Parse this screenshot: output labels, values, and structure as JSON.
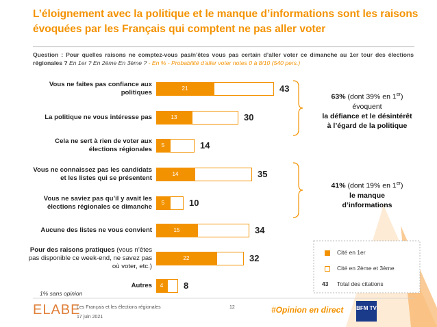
{
  "header": {
    "title_lines": [
      "L’éloignement avec la politique et le manque d’informations sont les raisons",
      "évoquées par les Français qui comptent ne pas aller voter"
    ],
    "question_label": "Question :",
    "question": "Pour quelles raisons ne comptez-vous pas/n’êtes vous pas certain d’aller voter ce dimanche au 1er tour des élections régionales ?",
    "question_options": "En 1er ? En 2ème En 3ème ?",
    "question_base": "- En % - Probabilité d’aller voter notes 0 à 8/10 (540 pers.)"
  },
  "chart_data": {
    "type": "stacked-bar-horizontal",
    "categories": [
      "Vous ne faites pas confiance aux politiques",
      "La politique ne vous intéresse pas",
      "Cela ne sert à rien de voter aux élections régionales",
      "Vous ne connaissez pas les candidats et les listes qui se présentent",
      "Vous ne saviez pas qu’il y avait les élections régionales ce dimanche",
      "Aucune des listes ne vous convient",
      "Pour des raisons pratiques",
      "Autres"
    ],
    "category_details": {
      "6": "(vous n’êtes pas disponible ce week-end, ne savez pas où voter, etc.)"
    },
    "series": [
      {
        "name": "Cité en 1er",
        "color": "#f39200",
        "values": [
          21,
          13,
          5,
          14,
          5,
          15,
          22,
          4
        ]
      },
      {
        "name": "Cité en 2ème et 3ème",
        "color": "#ffffff",
        "border": "#f39200",
        "values": [
          22,
          17,
          9,
          21,
          5,
          19,
          10,
          4
        ]
      }
    ],
    "totals": [
      43,
      30,
      14,
      35,
      10,
      34,
      32,
      8
    ],
    "total_legend": {
      "value": 43,
      "label": "Total des citations"
    },
    "note": "1% sans opinion",
    "annotations": [
      {
        "lead": "63%",
        "detail": "(dont 39% en 1",
        "sup": "er",
        "close": ")",
        "lines": [
          "évoquent",
          "la défiance et le désintérêt",
          "à l’égard de la politique"
        ]
      },
      {
        "lead": "41%",
        "detail": "(dont 19% en 1",
        "sup": "er",
        "close": ")",
        "lines": [
          "le manque",
          "d’informations"
        ]
      }
    ]
  },
  "footer": {
    "logo": "ELABE",
    "study": "Les Français et les élections régionales",
    "date": "17 juin 2021",
    "page": "12",
    "hashtag": "#Opinion en direct",
    "partner": "BFM TV"
  }
}
